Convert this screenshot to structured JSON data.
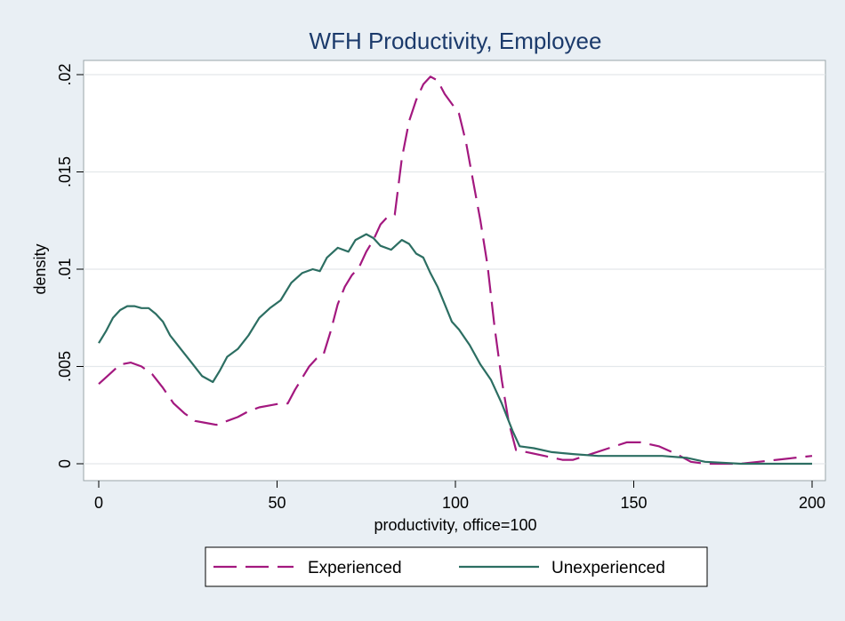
{
  "chart_data": {
    "type": "line",
    "title": "WFH Productivity, Employee",
    "xlabel": "productivity, office=100",
    "ylabel": "density",
    "xlim": [
      0,
      200
    ],
    "ylim": [
      0,
      0.02
    ],
    "grid": true,
    "legend_position": "bottom",
    "x_ticks": [
      0,
      50,
      100,
      150,
      200
    ],
    "x_tick_labels": [
      "0",
      "50",
      "100",
      "150",
      "200"
    ],
    "y_ticks": [
      0,
      0.005,
      0.01,
      0.015,
      0.02
    ],
    "y_tick_labels": [
      "0",
      ".005",
      ".01",
      ".015",
      ".02"
    ],
    "series": [
      {
        "name": "Experienced",
        "style": "dashed",
        "color": "#a3187f",
        "x": [
          0,
          3,
          6,
          9,
          12,
          15,
          18,
          21,
          24,
          27,
          30,
          33,
          36,
          39,
          42,
          45,
          48,
          51,
          53,
          55,
          57,
          59,
          61,
          63,
          65,
          67,
          69,
          71,
          73,
          75,
          77,
          79,
          81,
          83,
          85,
          87,
          89,
          91,
          93,
          95,
          97,
          99,
          101,
          103,
          105,
          107,
          109,
          111,
          113,
          115,
          117,
          120,
          125,
          130,
          133,
          138,
          143,
          148,
          152,
          157,
          162,
          166,
          170,
          175,
          180,
          185,
          190,
          195,
          200
        ],
        "values": [
          0.0041,
          0.0046,
          0.0051,
          0.0052,
          0.005,
          0.0046,
          0.0039,
          0.0031,
          0.0026,
          0.0022,
          0.0021,
          0.002,
          0.0022,
          0.0024,
          0.0027,
          0.0029,
          0.003,
          0.0031,
          0.0031,
          0.0038,
          0.0044,
          0.005,
          0.0054,
          0.0056,
          0.0068,
          0.0082,
          0.0091,
          0.0097,
          0.0101,
          0.0109,
          0.0115,
          0.0123,
          0.0127,
          0.0128,
          0.0157,
          0.0176,
          0.0187,
          0.0195,
          0.0199,
          0.0197,
          0.019,
          0.0185,
          0.018,
          0.0165,
          0.0145,
          0.0125,
          0.0102,
          0.007,
          0.0043,
          0.0021,
          0.0007,
          0.0006,
          0.0004,
          0.0002,
          0.0002,
          0.0005,
          0.0008,
          0.0011,
          0.0011,
          0.0009,
          0.0005,
          0.0001,
          0.0,
          0.0,
          0.0,
          0.0001,
          0.0002,
          0.0003,
          0.0004
        ]
      },
      {
        "name": "Unexperienced",
        "style": "solid",
        "color": "#2c6e62",
        "x": [
          0,
          2,
          4,
          6,
          8,
          10,
          12,
          14,
          16,
          18,
          20,
          23,
          26,
          29,
          32,
          34,
          36,
          39,
          42,
          45,
          48,
          51,
          54,
          57,
          60,
          62,
          64,
          67,
          70,
          72,
          75,
          77,
          79,
          82,
          85,
          87,
          89,
          91,
          93,
          95,
          97,
          99,
          101,
          104,
          107,
          110,
          113,
          116,
          118,
          122,
          127,
          133,
          140,
          150,
          158,
          165,
          170,
          180,
          190,
          200
        ],
        "values": [
          0.0062,
          0.0068,
          0.0075,
          0.0079,
          0.0081,
          0.0081,
          0.008,
          0.008,
          0.0077,
          0.0073,
          0.0066,
          0.0059,
          0.0052,
          0.0045,
          0.0042,
          0.0048,
          0.0055,
          0.0059,
          0.0066,
          0.0075,
          0.008,
          0.0084,
          0.0093,
          0.0098,
          0.01,
          0.0099,
          0.0106,
          0.0111,
          0.0109,
          0.0115,
          0.0118,
          0.0116,
          0.0112,
          0.011,
          0.0115,
          0.0113,
          0.0108,
          0.0106,
          0.0098,
          0.0091,
          0.0082,
          0.0073,
          0.0069,
          0.0061,
          0.0051,
          0.0043,
          0.0031,
          0.0017,
          0.0009,
          0.0008,
          0.0006,
          0.0005,
          0.0004,
          0.0004,
          0.0004,
          0.0003,
          0.0001,
          0.0,
          0.0,
          0.0
        ]
      }
    ]
  }
}
